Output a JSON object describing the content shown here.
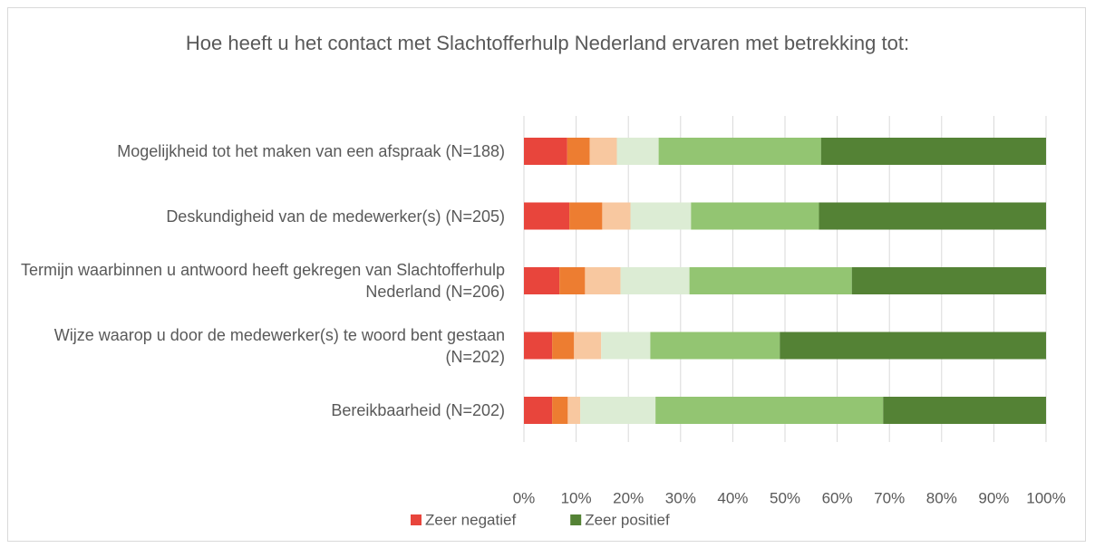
{
  "chart_data": {
    "type": "stacked-bar-horizontal",
    "title": "Hoe heeft u het contact met Slachtofferhulp Nederland ervaren met betrekking tot:",
    "categories": [
      "Mogelijkheid tot het maken van een afspraak (N=188)",
      "Deskundigheid van de medewerker(s) (N=205)",
      "Termijn waarbinnen u antwoord heeft gekregen van Slachtofferhulp Nederland (N=206)",
      "Wijze waarop u door de medewerker(s) te woord bent gestaan (N=202)",
      "Bereikbaarheid (N=202)"
    ],
    "series": [
      {
        "name": "Zeer negatief",
        "color": "#e8453c",
        "values": [
          8.3,
          8.7,
          6.8,
          5.4,
          5.4
        ]
      },
      {
        "color": "#ed7d31",
        "values": [
          4.3,
          6.3,
          4.9,
          4.2,
          3.0
        ]
      },
      {
        "color": "#f8c8a0",
        "values": [
          5.2,
          5.4,
          6.8,
          5.2,
          2.4
        ]
      },
      {
        "color": "#dcecd4",
        "values": [
          8.0,
          11.6,
          13.2,
          9.4,
          14.4
        ]
      },
      {
        "color": "#93c572",
        "values": [
          31.1,
          24.5,
          31.1,
          24.8,
          43.6
        ]
      },
      {
        "name": "Zeer positief",
        "color": "#548235",
        "values": [
          43.1,
          43.5,
          37.2,
          51.0,
          31.2
        ]
      }
    ],
    "xlim": [
      0,
      100
    ],
    "xticks": [
      {
        "value": 0,
        "label": "0%"
      },
      {
        "value": 10,
        "label": "10%"
      },
      {
        "value": 20,
        "label": "20%"
      },
      {
        "value": 30,
        "label": "30%"
      },
      {
        "value": 40,
        "label": "40%"
      },
      {
        "value": 50,
        "label": "50%"
      },
      {
        "value": 60,
        "label": "60%"
      },
      {
        "value": 70,
        "label": "70%"
      },
      {
        "value": 80,
        "label": "80%"
      },
      {
        "value": 90,
        "label": "90%"
      },
      {
        "value": 100,
        "label": "100%"
      }
    ],
    "grid": true,
    "legend": "bottom"
  }
}
